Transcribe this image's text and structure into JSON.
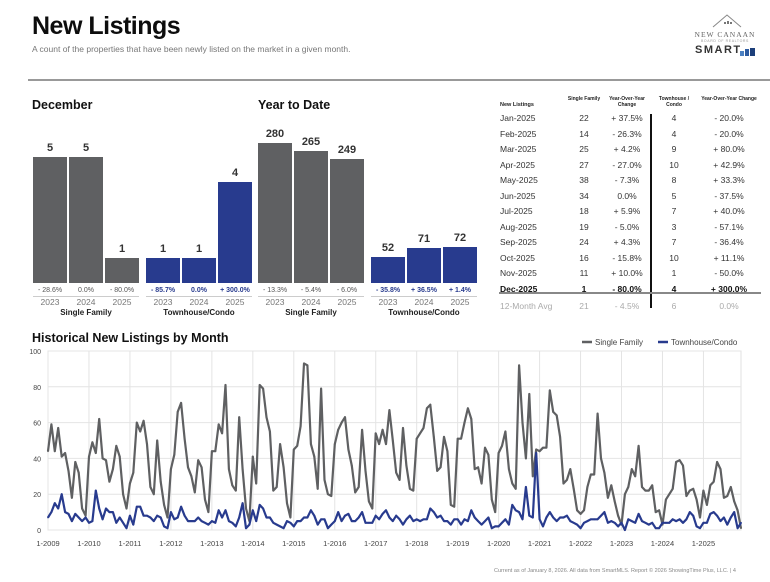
{
  "header": {
    "title": "New Listings",
    "subtitle": "A count of the properties that have been newly listed on the market in a given month."
  },
  "logo": {
    "name": "NEW CANAAN",
    "sub": "BOARD OF REALTORS",
    "brand": "SMART"
  },
  "colors": {
    "single_family": "#5f6062",
    "townhouse": "#283b8e"
  },
  "december": {
    "title": "December",
    "groups": [
      {
        "label": "Single Family",
        "color": "gray",
        "bars": [
          {
            "year": "2023",
            "value": 5,
            "change": "- 28.6%"
          },
          {
            "year": "2024",
            "value": 5,
            "change": "0.0%"
          },
          {
            "year": "2025",
            "value": 1,
            "change": "- 80.0%"
          }
        ]
      },
      {
        "label": "Townhouse/Condo",
        "color": "blue",
        "bars": [
          {
            "year": "2023",
            "value": 1,
            "change": "- 85.7%"
          },
          {
            "year": "2024",
            "value": 1,
            "change": "0.0%"
          },
          {
            "year": "2025",
            "value": 4,
            "change": "+ 300.0%"
          }
        ]
      }
    ]
  },
  "ytd": {
    "title": "Year to Date",
    "groups": [
      {
        "label": "Single Family",
        "color": "gray",
        "bars": [
          {
            "year": "2023",
            "value": 280,
            "change": "- 13.3%"
          },
          {
            "year": "2024",
            "value": 265,
            "change": "- 5.4%"
          },
          {
            "year": "2025",
            "value": 249,
            "change": "- 6.0%"
          }
        ]
      },
      {
        "label": "Townhouse/Condo",
        "color": "blue",
        "bars": [
          {
            "year": "2023",
            "value": 52,
            "change": "- 35.8%"
          },
          {
            "year": "2024",
            "value": 71,
            "change": "+ 36.5%"
          },
          {
            "year": "2025",
            "value": 72,
            "change": "+ 1.4%"
          }
        ]
      }
    ]
  },
  "table": {
    "headers": [
      "New Listings",
      "Single Family",
      "Year-Over-Year Change",
      "Townhouse / Condo",
      "Year-Over-Year Change"
    ],
    "rows": [
      [
        "Jan-2025",
        "22",
        "+ 37.5%",
        "4",
        "- 20.0%"
      ],
      [
        "Feb-2025",
        "14",
        "- 26.3%",
        "4",
        "- 20.0%"
      ],
      [
        "Mar-2025",
        "25",
        "+ 4.2%",
        "9",
        "+ 80.0%"
      ],
      [
        "Apr-2025",
        "27",
        "- 27.0%",
        "10",
        "+ 42.9%"
      ],
      [
        "May-2025",
        "38",
        "- 7.3%",
        "8",
        "+ 33.3%"
      ],
      [
        "Jun-2025",
        "34",
        "0.0%",
        "5",
        "- 37.5%"
      ],
      [
        "Jul-2025",
        "18",
        "+ 5.9%",
        "7",
        "+ 40.0%"
      ],
      [
        "Aug-2025",
        "19",
        "- 5.0%",
        "3",
        "- 57.1%"
      ],
      [
        "Sep-2025",
        "24",
        "+ 4.3%",
        "7",
        "- 36.4%"
      ],
      [
        "Oct-2025",
        "16",
        "- 15.8%",
        "10",
        "+ 11.1%"
      ],
      [
        "Nov-2025",
        "11",
        "+ 10.0%",
        "1",
        "- 50.0%"
      ],
      [
        "Dec-2025",
        "1",
        "- 80.0%",
        "4",
        "+ 300.0%"
      ]
    ],
    "avg_row": [
      "12-Month Avg",
      "21",
      "- 4.5%",
      "6",
      "0.0%"
    ]
  },
  "chart_data": {
    "type": "line",
    "title": "Historical New Listings by Month",
    "xlabel": "",
    "ylabel": "",
    "ylim": [
      0,
      100
    ],
    "yticks": [
      0,
      20,
      40,
      60,
      80,
      100
    ],
    "xticks": [
      "1-2009",
      "1-2010",
      "1-2011",
      "1-2012",
      "1-2013",
      "1-2014",
      "1-2015",
      "1-2016",
      "1-2017",
      "1-2018",
      "1-2019",
      "1-2020",
      "1-2021",
      "1-2022",
      "1-2023",
      "1-2024",
      "1-2025"
    ],
    "x_start": "Jan-2009",
    "x_end": "Dec-2025",
    "grid": true,
    "legend_position": "top-right",
    "series": [
      {
        "name": "Single Family",
        "color": "#5f6062",
        "values": [
          44,
          59,
          44,
          57,
          41,
          43,
          33,
          18,
          38,
          32,
          12,
          8,
          41,
          49,
          43,
          62,
          40,
          39,
          27,
          34,
          47,
          41,
          20,
          12,
          26,
          32,
          60,
          55,
          61,
          48,
          24,
          20,
          50,
          27,
          14,
          7,
          34,
          42,
          66,
          71,
          51,
          35,
          30,
          21,
          39,
          35,
          17,
          10,
          44,
          44,
          59,
          54,
          81,
          34,
          25,
          22,
          63,
          34,
          12,
          5,
          41,
          26,
          81,
          79,
          63,
          55,
          22,
          24,
          48,
          35,
          15,
          7,
          45,
          47,
          58,
          93,
          92,
          48,
          41,
          23,
          79,
          28,
          20,
          19,
          48,
          56,
          60,
          63,
          45,
          36,
          21,
          24,
          56,
          33,
          16,
          12,
          54,
          48,
          56,
          48,
          67,
          50,
          32,
          28,
          57,
          36,
          23,
          22,
          51,
          54,
          57,
          68,
          70,
          52,
          33,
          35,
          52,
          44,
          14,
          13,
          51,
          51,
          60,
          68,
          62,
          34,
          35,
          26,
          46,
          42,
          17,
          10,
          43,
          47,
          55,
          34,
          26,
          23,
          92,
          60,
          40,
          76,
          30,
          45,
          44,
          46,
          46,
          78,
          66,
          64,
          52,
          26,
          28,
          34,
          23,
          11,
          9,
          11,
          24,
          31,
          31,
          65,
          40,
          32,
          18,
          25,
          16,
          8,
          3,
          20,
          24,
          34,
          30,
          47,
          24,
          22,
          22,
          25,
          10,
          11,
          3,
          17,
          20,
          23,
          38,
          39,
          36,
          19,
          22,
          23,
          17,
          7,
          22,
          14,
          25,
          27,
          38,
          34,
          18,
          19,
          24,
          16,
          11,
          1
        ]
      },
      {
        "name": "Townhouse/Condo",
        "color": "#283b8e",
        "values": [
          7,
          10,
          15,
          12,
          20,
          10,
          9,
          5,
          9,
          7,
          5,
          7,
          4,
          5,
          22,
          12,
          6,
          12,
          10,
          10,
          4,
          7,
          4,
          1,
          8,
          3,
          13,
          13,
          8,
          8,
          7,
          5,
          8,
          7,
          2,
          1,
          10,
          6,
          7,
          13,
          8,
          5,
          5,
          5,
          7,
          5,
          4,
          3,
          5,
          4,
          11,
          7,
          11,
          5,
          4,
          2,
          7,
          15,
          1,
          3,
          11,
          5,
          14,
          12,
          7,
          7,
          4,
          3,
          2,
          1,
          5,
          4,
          2,
          5,
          5,
          7,
          7,
          11,
          8,
          3,
          6,
          6,
          1,
          3,
          5,
          10,
          5,
          8,
          9,
          5,
          5,
          7,
          10,
          4,
          4,
          4,
          8,
          6,
          9,
          11,
          7,
          5,
          8,
          6,
          3,
          6,
          8,
          5,
          6,
          5,
          6,
          6,
          12,
          10,
          7,
          8,
          5,
          5,
          3,
          6,
          6,
          3,
          6,
          5,
          11,
          7,
          5,
          3,
          5,
          7,
          1,
          2,
          2,
          4,
          6,
          3,
          14,
          11,
          10,
          6,
          24,
          8,
          7,
          43,
          6,
          2,
          7,
          10,
          7,
          5,
          7,
          7,
          8,
          5,
          4,
          3,
          1,
          4,
          5,
          6,
          6,
          6,
          8,
          10,
          4,
          5,
          4,
          2,
          4,
          0,
          6,
          5,
          4,
          9,
          5,
          4,
          3,
          4,
          1,
          1,
          4,
          4,
          4,
          6,
          5,
          6,
          4,
          6,
          10,
          8,
          2,
          1,
          4,
          4,
          9,
          10,
          8,
          5,
          7,
          3,
          7,
          10,
          1,
          4
        ]
      }
    ]
  },
  "footer": "Current as of January 8, 2026. All data from SmartMLS. Report © 2026 ShowingTime Plus, LLC. | 4"
}
